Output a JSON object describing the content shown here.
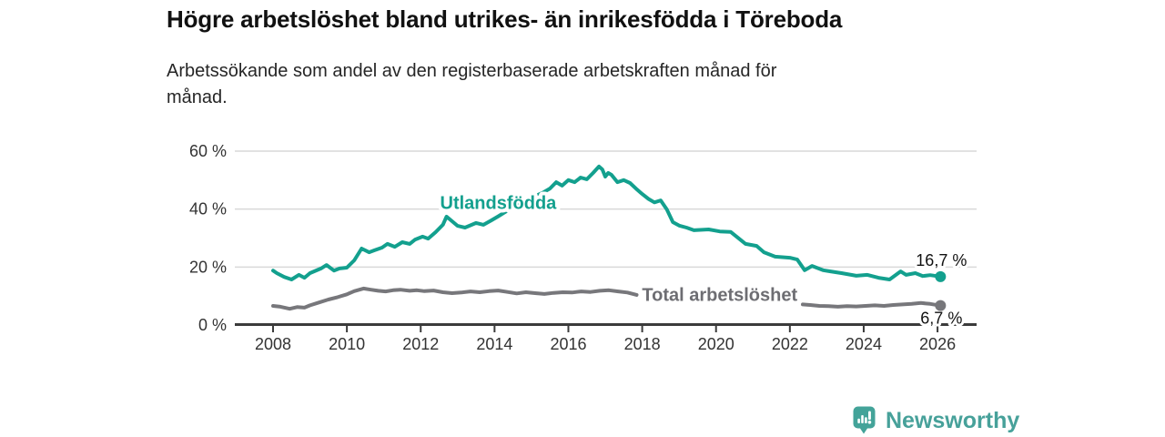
{
  "chart_data": {
    "type": "line",
    "title": "Högre arbetslöshet bland utrikes- än inrikesfödda i Töreboda",
    "subtitle_lines": [
      "Arbetssökande som andel av den registerbaserade arbetskraften månad för",
      "månad."
    ],
    "x_axis": {
      "tick_values": [
        2008,
        2010,
        2012,
        2014,
        2016,
        2018,
        2020,
        2022,
        2024,
        2026
      ],
      "tick_labels": [
        "2008",
        "2010",
        "2012",
        "2014",
        "2016",
        "2018",
        "2020",
        "2022",
        "2024",
        "2026"
      ],
      "range": [
        2007.9,
        2027.0
      ],
      "unit": "year"
    },
    "y_axis": {
      "tick_values": [
        0,
        20,
        40,
        60
      ],
      "tick_labels": [
        "0 %",
        "20 %",
        "40 %",
        "60 %"
      ],
      "range": [
        0,
        63
      ],
      "grid": true,
      "unit": "percent"
    },
    "series": [
      {
        "name": "Total arbetslöshet",
        "color": "#77777b",
        "label_color": "#6d6d72",
        "line_label": {
          "text": "Total arbetslöshet",
          "year": 2020.1,
          "value": 10.6
        },
        "end_label": {
          "text": "6,7 %",
          "dy": 20
        },
        "last_value": 6.7,
        "segments": [
          [
            [
              2008.0,
              6.6
            ],
            [
              2008.2,
              6.3
            ],
            [
              2008.45,
              5.6
            ],
            [
              2008.65,
              6.2
            ],
            [
              2008.85,
              6.0
            ],
            [
              2009.0,
              6.8
            ],
            [
              2009.25,
              7.8
            ],
            [
              2009.5,
              8.8
            ],
            [
              2009.75,
              9.6
            ],
            [
              2010.0,
              10.6
            ],
            [
              2010.2,
              11.7
            ],
            [
              2010.45,
              12.6
            ],
            [
              2010.65,
              12.2
            ],
            [
              2010.85,
              11.8
            ],
            [
              2011.05,
              11.6
            ],
            [
              2011.25,
              12.0
            ],
            [
              2011.45,
              12.2
            ],
            [
              2011.7,
              11.8
            ],
            [
              2011.9,
              12.0
            ],
            [
              2012.1,
              11.7
            ],
            [
              2012.35,
              11.9
            ],
            [
              2012.6,
              11.3
            ],
            [
              2012.85,
              11.0
            ],
            [
              2013.1,
              11.2
            ],
            [
              2013.35,
              11.6
            ],
            [
              2013.6,
              11.3
            ],
            [
              2013.85,
              11.7
            ],
            [
              2014.1,
              11.9
            ],
            [
              2014.35,
              11.4
            ],
            [
              2014.6,
              10.9
            ],
            [
              2014.85,
              11.3
            ],
            [
              2015.1,
              11.0
            ],
            [
              2015.35,
              10.7
            ],
            [
              2015.6,
              11.1
            ],
            [
              2015.85,
              11.3
            ],
            [
              2016.1,
              11.2
            ],
            [
              2016.35,
              11.6
            ],
            [
              2016.6,
              11.4
            ],
            [
              2016.85,
              11.8
            ],
            [
              2017.1,
              12.0
            ],
            [
              2017.35,
              11.6
            ],
            [
              2017.6,
              11.2
            ],
            [
              2017.85,
              10.4
            ]
          ],
          [
            [
              2022.35,
              7.1
            ],
            [
              2022.55,
              6.9
            ],
            [
              2022.8,
              6.6
            ],
            [
              2023.05,
              6.5
            ],
            [
              2023.3,
              6.3
            ],
            [
              2023.55,
              6.5
            ],
            [
              2023.8,
              6.4
            ],
            [
              2024.05,
              6.6
            ],
            [
              2024.3,
              6.8
            ],
            [
              2024.55,
              6.6
            ],
            [
              2024.8,
              6.9
            ],
            [
              2025.05,
              7.1
            ],
            [
              2025.3,
              7.3
            ],
            [
              2025.55,
              7.6
            ],
            [
              2025.8,
              7.3
            ],
            [
              2026.08,
              6.7
            ]
          ]
        ]
      },
      {
        "name": "Utlandsfödda",
        "color": "#13a08e",
        "label_color": "#13a08e",
        "line_label": {
          "text": "Utlandsfödda",
          "year": 2014.1,
          "value": 42.2
        },
        "end_label": {
          "text": "16,7 %",
          "dy": -12
        },
        "last_value": 16.7,
        "segments": [
          [
            [
              2008.0,
              18.8
            ],
            [
              2008.1,
              17.9
            ],
            [
              2008.3,
              16.6
            ],
            [
              2008.5,
              15.7
            ],
            [
              2008.7,
              17.3
            ],
            [
              2008.85,
              16.3
            ],
            [
              2009.0,
              17.9
            ],
            [
              2009.3,
              19.5
            ],
            [
              2009.45,
              20.7
            ],
            [
              2009.65,
              18.8
            ],
            [
              2009.8,
              19.5
            ],
            [
              2010.0,
              19.8
            ],
            [
              2010.2,
              22.3
            ],
            [
              2010.4,
              26.4
            ],
            [
              2010.6,
              25.1
            ],
            [
              2010.75,
              25.8
            ],
            [
              2010.95,
              26.7
            ],
            [
              2011.1,
              28.0
            ],
            [
              2011.3,
              27.0
            ],
            [
              2011.5,
              28.6
            ],
            [
              2011.7,
              28.0
            ],
            [
              2011.85,
              29.5
            ],
            [
              2012.05,
              30.5
            ],
            [
              2012.2,
              29.8
            ],
            [
              2012.4,
              32.0
            ],
            [
              2012.6,
              34.6
            ],
            [
              2012.7,
              37.4
            ],
            [
              2012.85,
              35.8
            ],
            [
              2013.0,
              34.2
            ],
            [
              2013.2,
              33.6
            ],
            [
              2013.5,
              35.2
            ],
            [
              2013.7,
              34.6
            ],
            [
              2013.9,
              36.0
            ],
            [
              2014.1,
              37.5
            ],
            [
              2014.35,
              39.5
            ],
            [
              2014.6,
              41.5
            ],
            [
              2014.85,
              43.0
            ],
            [
              2015.1,
              44.5
            ],
            [
              2015.3,
              45.6
            ],
            [
              2015.5,
              47.1
            ],
            [
              2015.67,
              49.3
            ],
            [
              2015.83,
              48.1
            ],
            [
              2016.0,
              50.0
            ],
            [
              2016.17,
              49.3
            ],
            [
              2016.33,
              50.9
            ],
            [
              2016.5,
              50.3
            ],
            [
              2016.67,
              52.5
            ],
            [
              2016.83,
              54.7
            ],
            [
              2016.92,
              53.7
            ],
            [
              2017.0,
              51.2
            ],
            [
              2017.08,
              52.5
            ],
            [
              2017.17,
              51.8
            ],
            [
              2017.33,
              49.3
            ],
            [
              2017.5,
              50.0
            ],
            [
              2017.67,
              49.0
            ],
            [
              2017.83,
              47.1
            ],
            [
              2018.0,
              45.2
            ],
            [
              2018.17,
              43.5
            ],
            [
              2018.33,
              42.3
            ],
            [
              2018.5,
              43.0
            ],
            [
              2018.67,
              39.8
            ],
            [
              2018.83,
              35.5
            ],
            [
              2019.0,
              34.3
            ],
            [
              2019.2,
              33.6
            ],
            [
              2019.4,
              32.7
            ],
            [
              2019.8,
              33.0
            ],
            [
              2020.1,
              32.3
            ],
            [
              2020.4,
              32.1
            ],
            [
              2020.8,
              28.0
            ],
            [
              2021.1,
              27.3
            ],
            [
              2021.3,
              25.1
            ],
            [
              2021.6,
              23.6
            ],
            [
              2022.0,
              23.2
            ],
            [
              2022.2,
              22.6
            ],
            [
              2022.4,
              18.9
            ],
            [
              2022.6,
              20.4
            ],
            [
              2022.9,
              18.9
            ],
            [
              2023.1,
              18.5
            ],
            [
              2023.4,
              17.9
            ],
            [
              2023.8,
              17.0
            ],
            [
              2024.1,
              17.3
            ],
            [
              2024.4,
              16.3
            ],
            [
              2024.7,
              15.7
            ],
            [
              2025.0,
              18.5
            ],
            [
              2025.15,
              17.3
            ],
            [
              2025.4,
              17.9
            ],
            [
              2025.6,
              16.9
            ],
            [
              2025.8,
              17.2
            ],
            [
              2026.08,
              16.7
            ]
          ]
        ]
      }
    ],
    "colors": {
      "grid": "#d9d9d9",
      "axis": "#3b3b3b",
      "tick_text": "#333333",
      "end_label_text": "#111111"
    },
    "legend_position": "inline-labels"
  },
  "footer": {
    "brand": "Newsworthy",
    "brand_color": "#47a19a"
  }
}
